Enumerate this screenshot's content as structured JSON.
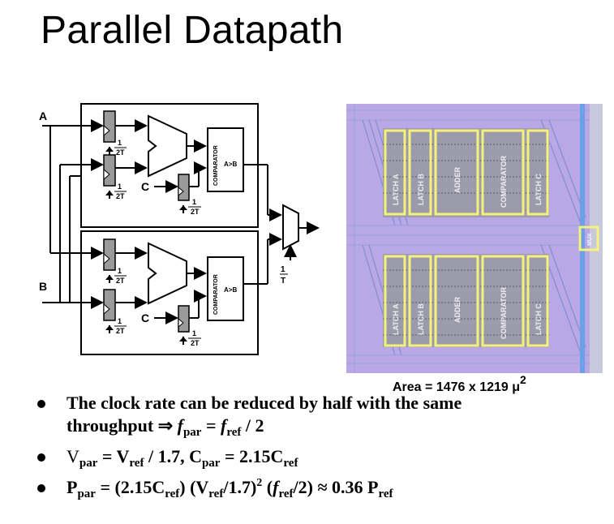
{
  "title": "Parallel Datapath",
  "circuit": {
    "input_a": "A",
    "input_b": "B",
    "comparator_label": "COMPARATOR",
    "comparator_out": "A>B",
    "c_label": "C",
    "clock_num": "1",
    "clock_den_2t": "2T",
    "mux_clock_den": "T"
  },
  "layout": {
    "block_labels": [
      "LATCH A",
      "LATCH B",
      "ADDER",
      "COMPARATOR",
      "LATCH C"
    ],
    "mux_label": "MUX",
    "area_caption": "Area = 1476 x 1219 μ",
    "area_exp": "2"
  },
  "bullets": {
    "b1_line1": "The clock rate can be reduced by half with the same",
    "b1_line2_pre": "throughput ⇒ ",
    "b1_f": "f",
    "b1_par": "par",
    "b1_eq": " = ",
    "b1_ref": "ref",
    "b1_tail": " / 2",
    "b2_V": "V",
    "b2_par": "par",
    "b2_eq": " = V",
    "b2_ref": "ref",
    "b2_mid": " / 1.7, C",
    "b2_par2": "par",
    "b2_eq2": " = 2.15C",
    "b2_ref2": "ref",
    "b3_P": "P",
    "b3_par": "par",
    "b3_a": " = (2.15C",
    "b3_ref": "ref",
    "b3_b": ") (V",
    "b3_ref2": "ref",
    "b3_c": "/1.7)",
    "b3_sq": "2",
    "b3_d": " (",
    "b3_f": "f",
    "b3_ref3": "ref",
    "b3_e": "/2) ≈ 0.36 P",
    "b3_ref4": "ref"
  }
}
